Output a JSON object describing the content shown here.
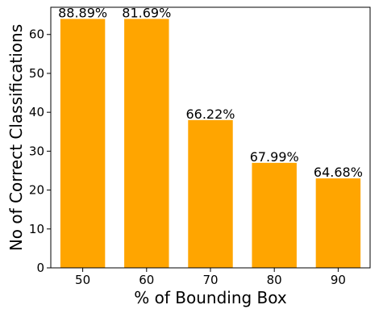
{
  "chart_data": {
    "type": "bar",
    "title": "",
    "xlabel": "% of Bounding Box",
    "ylabel": "No of Correct Classifications",
    "categories": [
      "50",
      "60",
      "70",
      "80",
      "90"
    ],
    "values": [
      64,
      64,
      38,
      27,
      23
    ],
    "data_labels": [
      "88.89%",
      "81.69%",
      "66.22%",
      "67.99%",
      "64.68%"
    ],
    "y_ticks": [
      0,
      10,
      20,
      30,
      40,
      50,
      60
    ],
    "ylim": [
      0,
      67
    ],
    "grid": false,
    "legend": "none",
    "bar_color": "#FFA500"
  }
}
